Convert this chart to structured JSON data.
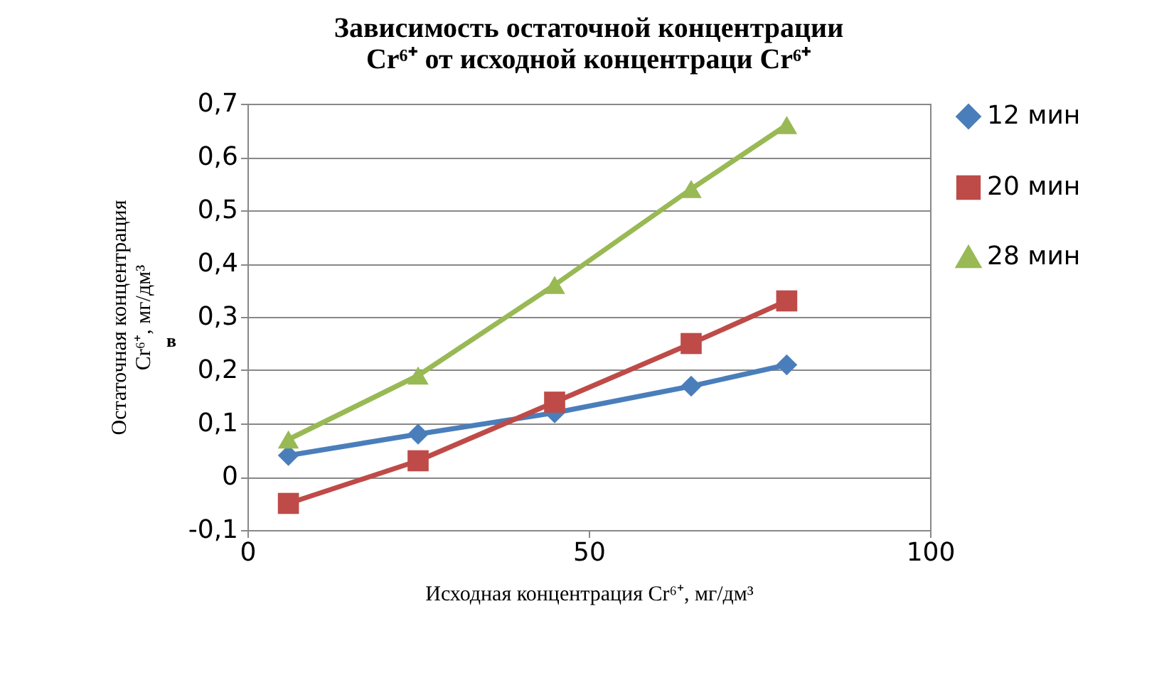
{
  "chart_data": {
    "type": "line",
    "title": "Зависимость остаточной концентрации Cr⁶⁺ от исходной концентраци Cr⁶⁺",
    "xlabel": "Исходная концентрация Cr⁶⁺, мг/дм³",
    "ylabel": "Остаточная концентрация Cr⁶⁺, мг/дм³",
    "annotations": [
      "в"
    ],
    "x": [
      6,
      25,
      45,
      65,
      79
    ],
    "series": [
      {
        "name": "12 мин",
        "color": "#4a7ebb",
        "marker": "diamond",
        "values": [
          0.04,
          0.08,
          0.12,
          0.17,
          0.21
        ]
      },
      {
        "name": "20 мин",
        "color": "#be4b48",
        "marker": "square",
        "values": [
          -0.05,
          0.03,
          0.14,
          0.25,
          0.33
        ]
      },
      {
        "name": "28 мин",
        "color": "#98b954",
        "marker": "triangle",
        "values": [
          0.07,
          0.19,
          0.36,
          0.54,
          0.66
        ]
      }
    ],
    "xlim": [
      0,
      100
    ],
    "xticks": [
      0,
      50,
      100
    ],
    "ylim": [
      -0.1,
      0.7
    ],
    "yticks": [
      {
        "value": -0.1,
        "label": "-0,1"
      },
      {
        "value": 0,
        "label": "0"
      },
      {
        "value": 0.1,
        "label": "0,1"
      },
      {
        "value": 0.2,
        "label": "0,2"
      },
      {
        "value": 0.3,
        "label": "0,3"
      },
      {
        "value": 0.4,
        "label": "0,4"
      },
      {
        "value": 0.5,
        "label": "0,5"
      },
      {
        "value": 0.6,
        "label": "0,6"
      },
      {
        "value": 0.7,
        "label": "0,7"
      }
    ],
    "grid": "y",
    "legend": "right",
    "line_style": "solid"
  }
}
